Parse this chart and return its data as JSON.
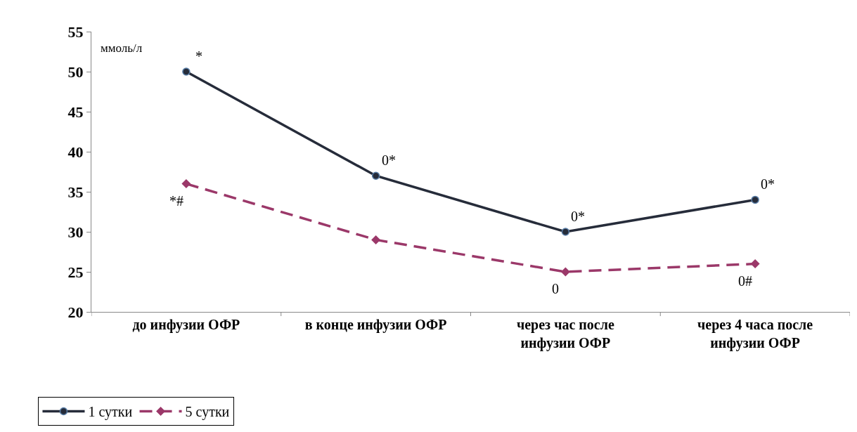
{
  "chart_data": {
    "type": "line",
    "ylabel": "ммоль/л",
    "categories": [
      "до инфузии ОФР",
      "в конце инфузии ОФР",
      "через час после инфузии ОФР",
      "через 4 часа после инфузии ОФР"
    ],
    "series": [
      {
        "name": "1 сутки",
        "color": "#262c3a",
        "values": [
          50,
          37,
          30,
          34
        ],
        "marker": "circle",
        "line_style": "solid"
      },
      {
        "name": "5 сутки",
        "color": "#9b3869",
        "values": [
          36,
          29,
          25,
          26
        ],
        "marker": "diamond",
        "line_style": "dashed"
      }
    ],
    "ylim": [
      20,
      55
    ],
    "yticks": [
      20,
      25,
      30,
      35,
      40,
      45,
      50,
      55
    ],
    "grid": false,
    "legend": "bottom left",
    "annotations": [
      {
        "text": "*",
        "x": "до инфузии ОФР",
        "y": 50
      },
      {
        "text": "0*",
        "x": "в конце инфузии ОФР",
        "y": 37
      },
      {
        "text": "0*",
        "x": "через час после инфузии ОФР",
        "y": 30
      },
      {
        "text": "0*",
        "x": "через 4 часа после инфузии ОФР",
        "y": 34
      },
      {
        "text": "*#",
        "x": "до инфузии ОФР",
        "y": 36
      },
      {
        "text": "0",
        "x": "через час после инфузии ОФР",
        "y": 25
      },
      {
        "text": "0#",
        "x": "через 4 часа после инфузии ОФР",
        "y": 26
      }
    ]
  }
}
